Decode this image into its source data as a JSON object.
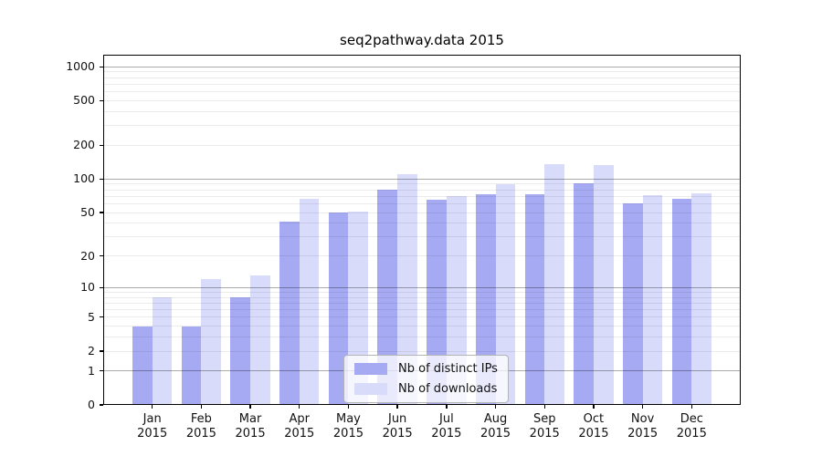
{
  "chart_data": {
    "type": "bar",
    "title": "seq2pathway.data 2015",
    "categories": [
      "Jan",
      "Feb",
      "Mar",
      "Apr",
      "May",
      "Jun",
      "Jul",
      "Aug",
      "Sep",
      "Oct",
      "Nov",
      "Dec"
    ],
    "year_label": "2015",
    "series": [
      {
        "name": "Nb of distinct IPs",
        "color": "#a6aaf2",
        "values": [
          4,
          4,
          8,
          41,
          50,
          80,
          65,
          73,
          73,
          92,
          60,
          66
        ]
      },
      {
        "name": "Nb of downloads",
        "color": "#d8dbfa",
        "values": [
          8,
          12,
          13,
          67,
          51,
          111,
          70,
          90,
          136,
          134,
          72,
          75
        ]
      }
    ],
    "y_ticks": [
      0,
      1,
      2,
      5,
      10,
      20,
      50,
      100,
      200,
      500,
      1000
    ],
    "y_scale": "log10(value+1)",
    "ylim": [
      0,
      1280
    ],
    "grid": true,
    "grid_major_at": [
      1,
      10,
      100,
      1000
    ],
    "legend_position": "lower-center",
    "xlabel": "",
    "ylabel": ""
  }
}
